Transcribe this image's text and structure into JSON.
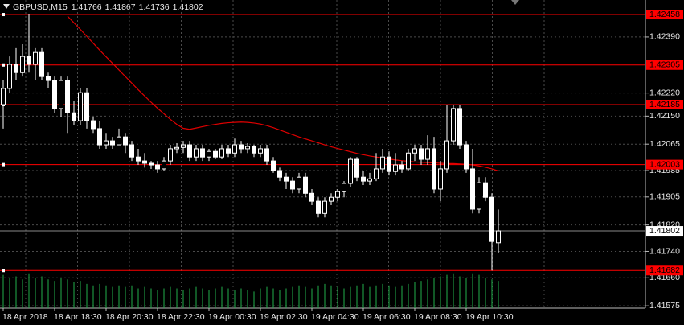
{
  "chart_data": {
    "type": "candlestick",
    "symbol": "GBPUSD,M15",
    "categories": [
      "18 Apr 2018",
      null,
      null,
      null,
      null,
      null,
      null,
      null,
      "18 Apr 18:30",
      null,
      null,
      null,
      null,
      null,
      null,
      null,
      "18 Apr 20:30",
      null,
      null,
      null,
      null,
      null,
      null,
      null,
      "18 Apr 22:30",
      null,
      null,
      null,
      null,
      null,
      null,
      null,
      "19 Apr 00:30",
      null,
      null,
      null,
      null,
      null,
      null,
      null,
      "19 Apr 02:30",
      null,
      null,
      null,
      null,
      null,
      null,
      null,
      "19 Apr 04:30",
      null,
      null,
      null,
      null,
      null,
      null,
      null,
      "19 Apr 06:30",
      null,
      null,
      null,
      null,
      null,
      null,
      null,
      "19 Apr 08:30",
      null,
      null,
      null,
      null,
      null,
      null,
      null,
      "19 Apr 10:30",
      null,
      null,
      null,
      null,
      null
    ],
    "open": [
      1.42185,
      1.42234,
      1.42307,
      1.42282,
      1.42331,
      1.42307,
      1.42343,
      1.4227,
      1.42258,
      1.42173,
      1.42258,
      1.4216,
      1.42136,
      1.42221,
      1.42136,
      1.42112,
      1.42063,
      1.42075,
      1.42063,
      1.42087,
      1.42063,
      1.42026,
      1.42014,
      1.42007,
      1.42002,
      1.4199,
      1.42014,
      1.42051,
      1.42055,
      1.42063,
      1.42026,
      1.42051,
      1.42026,
      1.42043,
      1.42026,
      1.42051,
      1.42038,
      1.42063,
      1.42051,
      1.42058,
      1.42038,
      1.42051,
      1.42014,
      1.41985,
      1.41965,
      1.41953,
      1.41929,
      1.41965,
      1.41916,
      1.41892,
      1.41855,
      1.41892,
      1.41904,
      1.41921,
      1.41946,
      1.42019,
      1.41965,
      1.41953,
      1.4196,
      1.4199,
      1.42026,
      1.41982,
      1.42002,
      1.4199,
      1.42038,
      1.42051,
      1.42019,
      1.42051,
      1.41929,
      1.4199,
      1.42075,
      1.42173,
      1.42063,
      1.4199,
      1.41868,
      1.41948,
      1.41904,
      1.41766
    ],
    "high": [
      1.42258,
      1.42331,
      1.42356,
      1.42368,
      1.42458,
      1.42356,
      1.42356,
      1.42282,
      1.4227,
      1.4227,
      1.4227,
      1.42197,
      1.42234,
      1.42234,
      1.42148,
      1.42136,
      1.42099,
      1.42087,
      1.42112,
      1.42099,
      1.42075,
      1.42051,
      1.42038,
      1.42014,
      1.42014,
      1.42026,
      1.42063,
      1.42068,
      1.42075,
      1.42075,
      1.42063,
      1.42063,
      1.42051,
      1.42051,
      1.42063,
      1.42063,
      1.42082,
      1.42075,
      1.42068,
      1.42063,
      1.42063,
      1.42063,
      1.42026,
      1.41994,
      1.41978,
      1.41965,
      1.41978,
      1.41978,
      1.41929,
      1.41904,
      1.41904,
      1.41916,
      1.41929,
      1.41953,
      1.42026,
      1.42026,
      1.41985,
      1.41978,
      1.42038,
      1.42051,
      1.42043,
      1.42038,
      1.42014,
      1.42051,
      1.42063,
      1.42063,
      1.42092,
      1.42087,
      1.42014,
      1.42185,
      1.42185,
      1.42185,
      1.42075,
      1.42051,
      1.41965,
      1.41965,
      1.41916,
      1.41867
    ],
    "low": [
      1.42112,
      1.42221,
      1.42258,
      1.4227,
      1.42282,
      1.42258,
      1.42258,
      1.42234,
      1.4216,
      1.42148,
      1.42099,
      1.42124,
      1.42124,
      1.42112,
      1.42099,
      1.42051,
      1.42051,
      1.42051,
      1.42063,
      1.42038,
      1.42014,
      1.42002,
      1.41994,
      1.4199,
      1.41978,
      1.41985,
      1.42002,
      1.42038,
      1.42038,
      1.42014,
      1.42014,
      1.42014,
      1.42014,
      1.42019,
      1.42019,
      1.42026,
      1.42026,
      1.42038,
      1.42038,
      1.42026,
      1.42026,
      1.42002,
      1.41978,
      1.41953,
      1.41929,
      1.41916,
      1.41916,
      1.41904,
      1.4188,
      1.41843,
      1.41843,
      1.4188,
      1.41892,
      1.41904,
      1.41936,
      1.41953,
      1.41941,
      1.41941,
      1.41953,
      1.41978,
      1.4197,
      1.4197,
      1.41978,
      1.41985,
      1.42014,
      1.42002,
      1.42002,
      1.41916,
      1.41892,
      1.41978,
      1.42063,
      1.42051,
      1.41978,
      1.41855,
      1.41855,
      1.41892,
      1.41682,
      1.41736
    ],
    "close": [
      1.42234,
      1.42307,
      1.42282,
      1.42331,
      1.42307,
      1.42343,
      1.4227,
      1.42258,
      1.42173,
      1.42258,
      1.4216,
      1.42136,
      1.42221,
      1.42136,
      1.42112,
      1.42063,
      1.42075,
      1.42063,
      1.42087,
      1.42063,
      1.42026,
      1.42014,
      1.42007,
      1.42002,
      1.4199,
      1.42014,
      1.42051,
      1.42055,
      1.42063,
      1.42026,
      1.42051,
      1.42026,
      1.42043,
      1.42026,
      1.42051,
      1.42038,
      1.42063,
      1.42051,
      1.42058,
      1.42038,
      1.42051,
      1.42014,
      1.41985,
      1.41965,
      1.41953,
      1.41929,
      1.41965,
      1.41916,
      1.41892,
      1.41855,
      1.41892,
      1.41904,
      1.41921,
      1.41946,
      1.42019,
      1.41965,
      1.41953,
      1.4196,
      1.4199,
      1.42026,
      1.41982,
      1.42002,
      1.4199,
      1.42038,
      1.42051,
      1.42019,
      1.42051,
      1.41929,
      1.4199,
      1.42075,
      1.42173,
      1.42063,
      1.4199,
      1.41868,
      1.41948,
      1.41904,
      1.4177,
      1.41802
    ],
    "up_color": "#000000",
    "down_color": "#ffffff",
    "ma": {
      "color": "#e00000",
      "values": [
        null,
        null,
        null,
        null,
        null,
        null,
        null,
        null,
        null,
        null,
        1.42453,
        1.42433,
        1.42413,
        1.42392,
        1.42371,
        1.4235,
        1.4233,
        1.4231,
        1.4229,
        1.4227,
        1.4225,
        1.4223,
        1.42211,
        1.42192,
        1.42174,
        1.42157,
        1.4214,
        1.42125,
        1.42113,
        1.4211,
        1.42114,
        1.42118,
        1.42122,
        1.42125,
        1.42128,
        1.4213,
        1.42131,
        1.42132,
        1.42131,
        1.42129,
        1.42126,
        1.42121,
        1.42115,
        1.42108,
        1.42101,
        1.42094,
        1.42087,
        1.42081,
        1.42075,
        1.42069,
        1.42063,
        1.42057,
        1.42052,
        1.42047,
        1.42042,
        1.42037,
        1.42033,
        1.42029,
        1.42026,
        1.42023,
        1.4202,
        1.42017,
        1.42015,
        1.42013,
        1.42011,
        1.4201,
        1.42009,
        1.42008,
        1.42007,
        1.42006,
        1.42006,
        1.42005,
        1.42004,
        1.42002,
        1.41999,
        1.41995,
        1.4199,
        1.41984
      ]
    },
    "volumes": {
      "color": "#22b14c",
      "values": [
        44,
        40,
        42,
        38,
        46,
        40,
        42,
        38,
        36,
        40,
        38,
        34,
        36,
        32,
        30,
        32,
        30,
        28,
        30,
        28,
        30,
        26,
        28,
        26,
        24,
        26,
        28,
        26,
        24,
        26,
        28,
        26,
        24,
        26,
        28,
        26,
        24,
        26,
        24,
        22,
        26,
        28,
        26,
        24,
        26,
        28,
        30,
        28,
        26,
        30,
        32,
        30,
        28,
        26,
        28,
        30,
        32,
        28,
        30,
        32,
        30,
        28,
        30,
        32,
        34,
        36,
        38,
        40,
        42,
        44,
        46,
        42,
        40,
        46,
        44,
        40,
        38,
        36
      ]
    },
    "volume_lim": [
      0,
      50
    ],
    "levels": [
      1.42458,
      1.42305,
      1.42185,
      1.42003,
      1.41682
    ],
    "level_color": "#ff0000",
    "ylim": [
      1.41568,
      1.42502
    ],
    "yticks": [
      {
        "value": 1.4239,
        "label": "1.42390"
      },
      {
        "value": 1.4222,
        "label": "1.42220"
      },
      {
        "value": 1.4215,
        "label": "1.42150"
      },
      1.42065,
      1.41985,
      1.41905,
      {
        "value": 1.4182,
        "label": "1.41820"
      },
      {
        "value": 1.4174,
        "label": "1.41740"
      },
      {
        "value": 1.4166,
        "label": "1.41660"
      },
      1.41575
    ],
    "grid": true
  }
}
